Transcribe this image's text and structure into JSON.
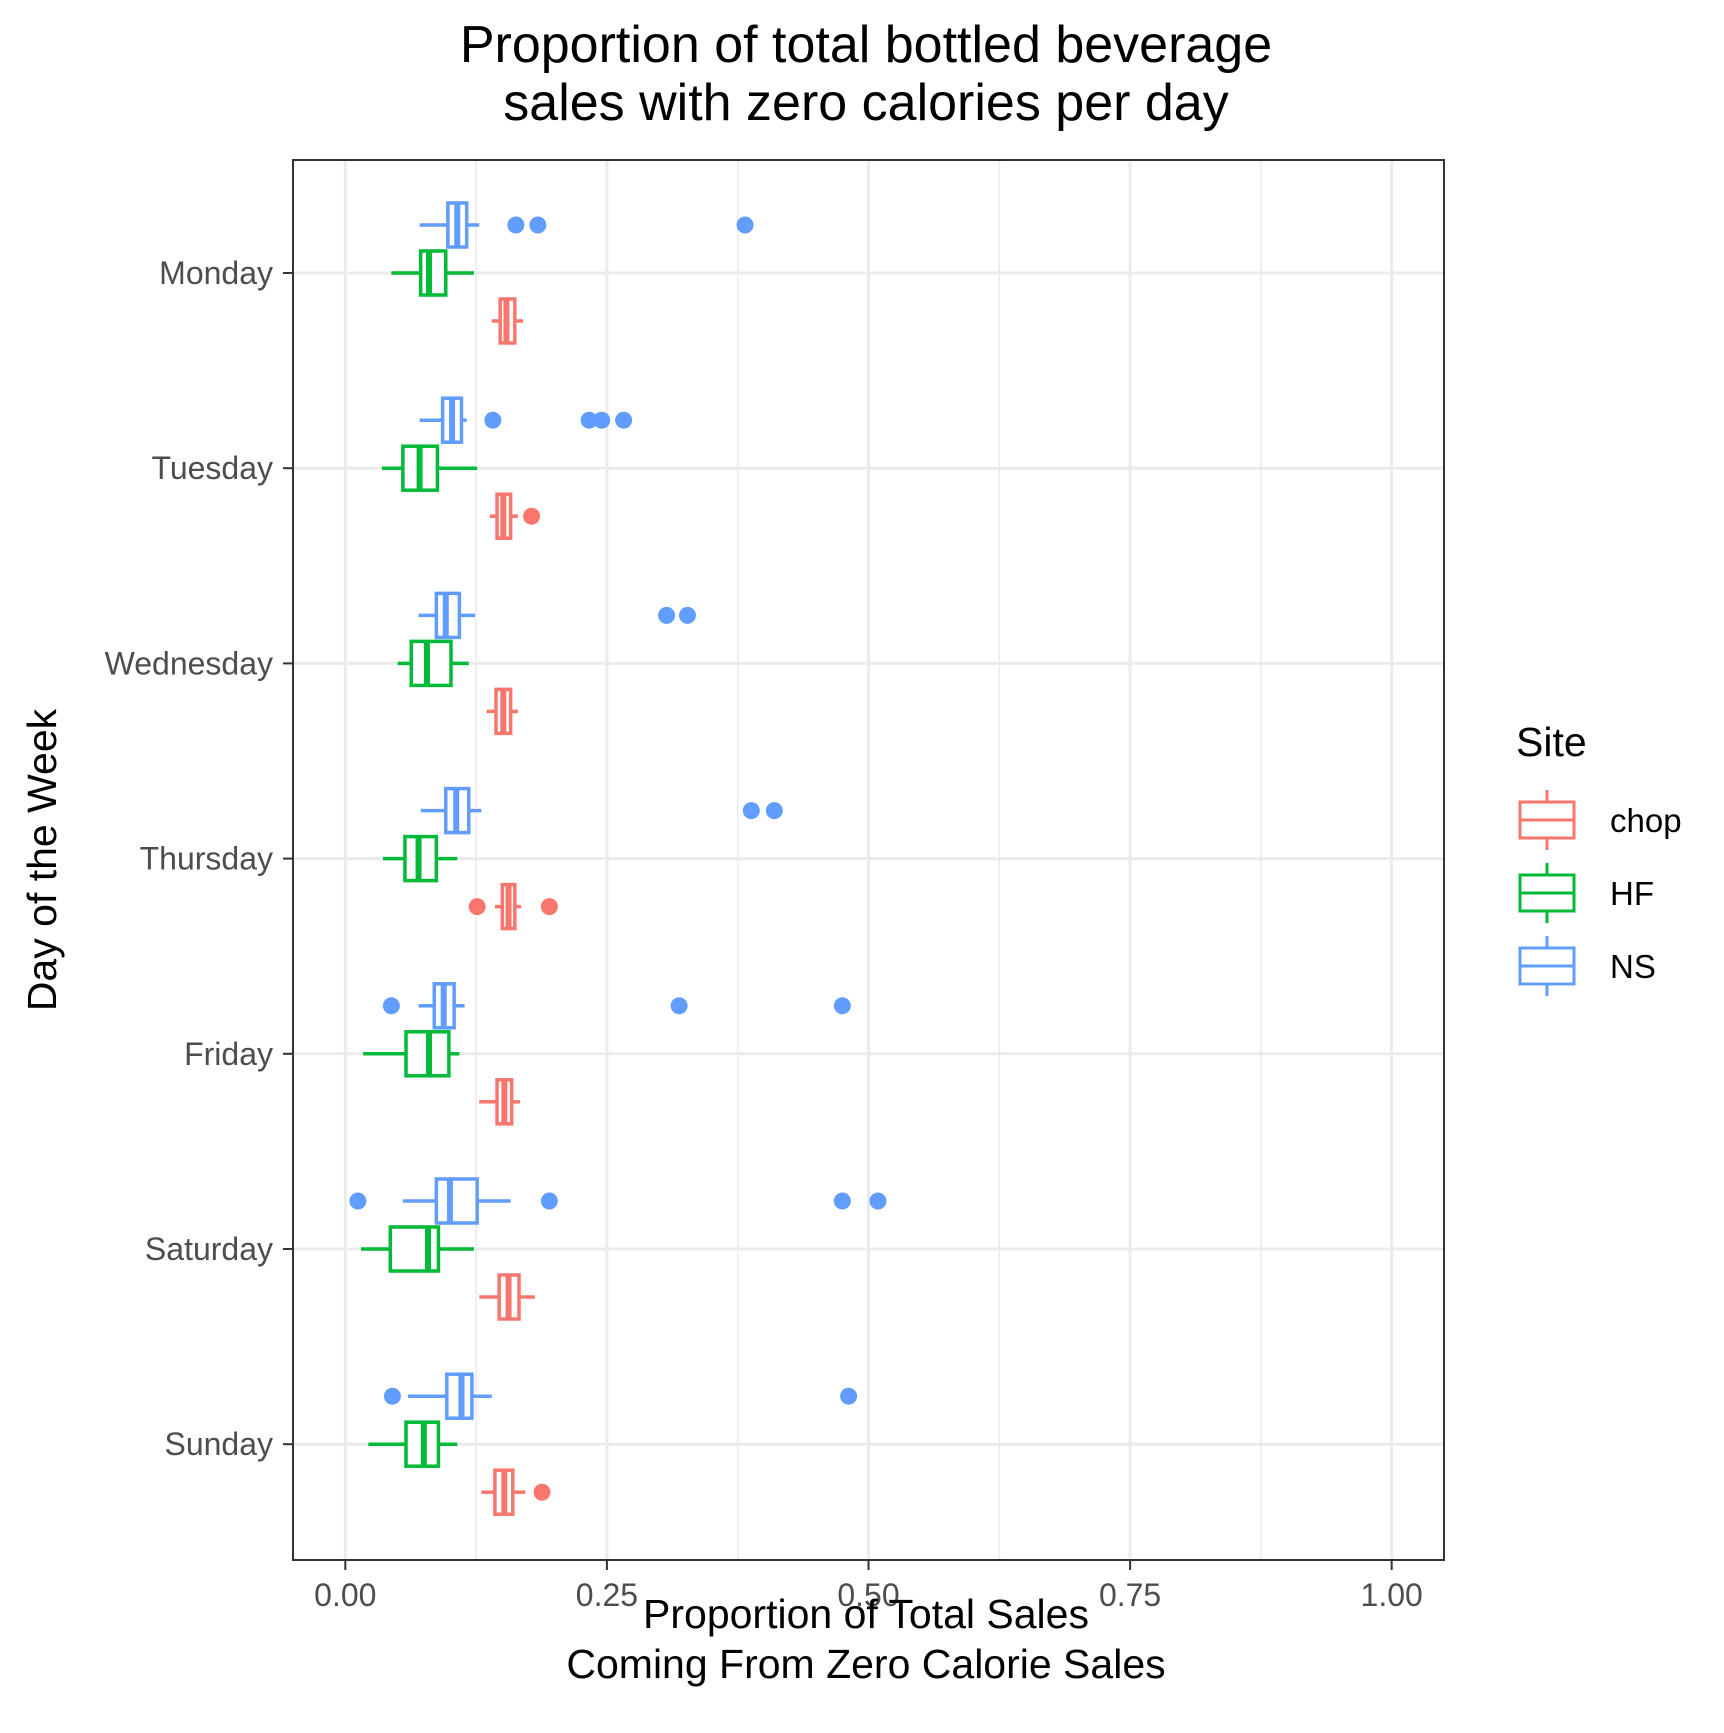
{
  "chart_data": {
    "type": "boxplot",
    "orientation": "horizontal",
    "title": "Proportion of total bottled beverage\nsales with zero calories per day",
    "xlabel": "Proportion of Total Sales\nComing From Zero Calorie Sales",
    "ylabel": "Day of the Week",
    "xlim": [
      -0.05,
      1.05
    ],
    "x_ticks": [
      0,
      0.25,
      0.5,
      0.75,
      1.0
    ],
    "x_tick_labels": [
      "0.00",
      "0.25",
      "0.50",
      "0.75",
      "1.00"
    ],
    "categories": [
      "Monday",
      "Tuesday",
      "Wednesday",
      "Thursday",
      "Friday",
      "Saturday",
      "Sunday"
    ],
    "grid": true,
    "legend": {
      "title": "Site",
      "position": "right",
      "entries": [
        "chop",
        "HF",
        "NS"
      ]
    },
    "series": [
      {
        "name": "chop",
        "color": "#F8766D",
        "boxes": [
          {
            "day": "Monday",
            "whisker_low": 0.14,
            "q1": 0.148,
            "median": 0.154,
            "q3": 0.162,
            "whisker_high": 0.17,
            "outliers": []
          },
          {
            "day": "Tuesday",
            "whisker_low": 0.138,
            "q1": 0.145,
            "median": 0.151,
            "q3": 0.158,
            "whisker_high": 0.165,
            "outliers": [
              0.178
            ]
          },
          {
            "day": "Wednesday",
            "whisker_low": 0.135,
            "q1": 0.144,
            "median": 0.151,
            "q3": 0.158,
            "whisker_high": 0.165,
            "outliers": []
          },
          {
            "day": "Thursday",
            "whisker_low": 0.143,
            "q1": 0.15,
            "median": 0.156,
            "q3": 0.162,
            "whisker_high": 0.168,
            "outliers": [
              0.126,
              0.195
            ]
          },
          {
            "day": "Friday",
            "whisker_low": 0.128,
            "q1": 0.145,
            "median": 0.152,
            "q3": 0.159,
            "whisker_high": 0.167,
            "outliers": []
          },
          {
            "day": "Saturday",
            "whisker_low": 0.128,
            "q1": 0.147,
            "median": 0.156,
            "q3": 0.166,
            "whisker_high": 0.181,
            "outliers": []
          },
          {
            "day": "Sunday",
            "whisker_low": 0.13,
            "q1": 0.143,
            "median": 0.152,
            "q3": 0.16,
            "whisker_high": 0.172,
            "outliers": [
              0.188
            ]
          }
        ]
      },
      {
        "name": "HF",
        "color": "#00BA38",
        "boxes": [
          {
            "day": "Monday",
            "whisker_low": 0.044,
            "q1": 0.072,
            "median": 0.08,
            "q3": 0.096,
            "whisker_high": 0.123,
            "outliers": []
          },
          {
            "day": "Tuesday",
            "whisker_low": 0.035,
            "q1": 0.055,
            "median": 0.071,
            "q3": 0.088,
            "whisker_high": 0.126,
            "outliers": []
          },
          {
            "day": "Wednesday",
            "whisker_low": 0.05,
            "q1": 0.063,
            "median": 0.078,
            "q3": 0.101,
            "whisker_high": 0.118,
            "outliers": []
          },
          {
            "day": "Thursday",
            "whisker_low": 0.036,
            "q1": 0.057,
            "median": 0.07,
            "q3": 0.087,
            "whisker_high": 0.107,
            "outliers": []
          },
          {
            "day": "Friday",
            "whisker_low": 0.017,
            "q1": 0.058,
            "median": 0.08,
            "q3": 0.099,
            "whisker_high": 0.109,
            "outliers": []
          },
          {
            "day": "Saturday",
            "whisker_low": 0.015,
            "q1": 0.043,
            "median": 0.079,
            "q3": 0.089,
            "whisker_high": 0.123,
            "outliers": []
          },
          {
            "day": "Sunday",
            "whisker_low": 0.022,
            "q1": 0.058,
            "median": 0.075,
            "q3": 0.089,
            "whisker_high": 0.107,
            "outliers": []
          }
        ]
      },
      {
        "name": "NS",
        "color": "#619CFF",
        "boxes": [
          {
            "day": "Monday",
            "whisker_low": 0.071,
            "q1": 0.098,
            "median": 0.107,
            "q3": 0.116,
            "whisker_high": 0.128,
            "outliers": [
              0.163,
              0.184,
              0.382
            ]
          },
          {
            "day": "Tuesday",
            "whisker_low": 0.071,
            "q1": 0.093,
            "median": 0.102,
            "q3": 0.111,
            "whisker_high": 0.116,
            "outliers": [
              0.141,
              0.233,
              0.245,
              0.266
            ]
          },
          {
            "day": "Wednesday",
            "whisker_low": 0.07,
            "q1": 0.087,
            "median": 0.096,
            "q3": 0.109,
            "whisker_high": 0.124,
            "outliers": [
              0.307,
              0.327
            ]
          },
          {
            "day": "Thursday",
            "whisker_low": 0.072,
            "q1": 0.096,
            "median": 0.106,
            "q3": 0.118,
            "whisker_high": 0.13,
            "outliers": [
              0.388,
              0.41
            ]
          },
          {
            "day": "Friday",
            "whisker_low": 0.07,
            "q1": 0.085,
            "median": 0.094,
            "q3": 0.104,
            "whisker_high": 0.114,
            "outliers": [
              0.044,
              0.319,
              0.475
            ]
          },
          {
            "day": "Saturday",
            "whisker_low": 0.055,
            "q1": 0.087,
            "median": 0.1,
            "q3": 0.126,
            "whisker_high": 0.158,
            "outliers": [
              0.012,
              0.195,
              0.475,
              0.509
            ]
          },
          {
            "day": "Sunday",
            "whisker_low": 0.06,
            "q1": 0.097,
            "median": 0.111,
            "q3": 0.121,
            "whisker_high": 0.14,
            "outliers": [
              0.045,
              0.481
            ]
          }
        ]
      }
    ]
  }
}
